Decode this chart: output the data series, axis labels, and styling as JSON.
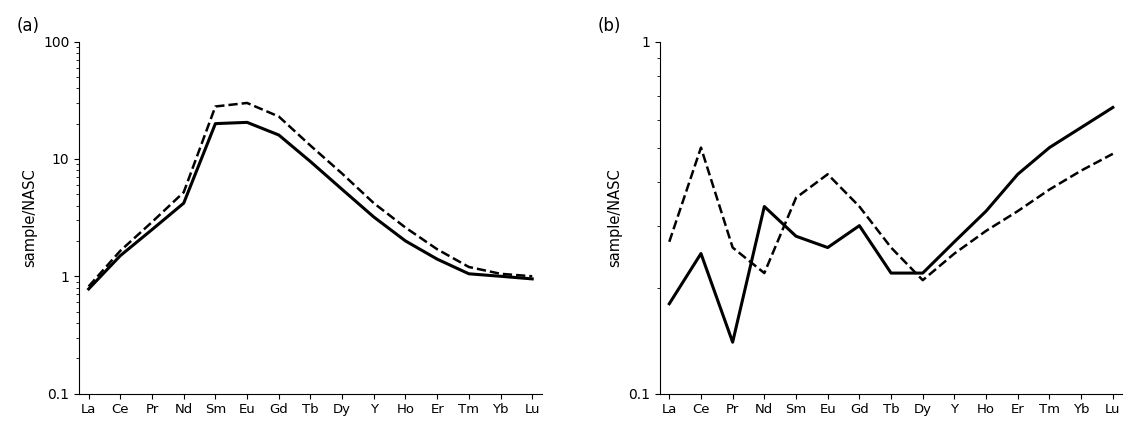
{
  "elements": [
    "La",
    "Ce",
    "Pr",
    "Nd",
    "Sm",
    "Eu",
    "Gd",
    "Tb",
    "Dy",
    "Y",
    "Ho",
    "Er",
    "Tm",
    "Yb",
    "Lu"
  ],
  "panel_a_solid": [
    0.78,
    1.5,
    2.5,
    4.2,
    20.0,
    20.5,
    16.0,
    9.5,
    5.5,
    3.2,
    2.0,
    1.4,
    1.05,
    1.0,
    0.95
  ],
  "panel_a_dashed": [
    0.82,
    1.65,
    2.9,
    5.2,
    28.0,
    30.0,
    23.0,
    13.0,
    7.5,
    4.2,
    2.6,
    1.7,
    1.2,
    1.05,
    1.0
  ],
  "panel_b_solid": [
    0.18,
    0.25,
    0.14,
    0.34,
    0.28,
    0.26,
    0.3,
    0.22,
    0.22,
    0.27,
    0.33,
    0.42,
    0.5,
    0.57,
    0.65
  ],
  "panel_b_dashed": [
    0.27,
    0.5,
    0.26,
    0.22,
    0.36,
    0.42,
    0.34,
    0.26,
    0.21,
    0.25,
    0.29,
    0.33,
    0.38,
    0.43,
    0.48
  ],
  "ylabel": "sample/NASC",
  "panel_a_ylim": [
    0.1,
    100
  ],
  "panel_b_ylim": [
    0.1,
    1.0
  ],
  "solid_lw": 2.2,
  "dashed_lw": 1.8,
  "label_a": "(a)",
  "label_b": "(b)"
}
